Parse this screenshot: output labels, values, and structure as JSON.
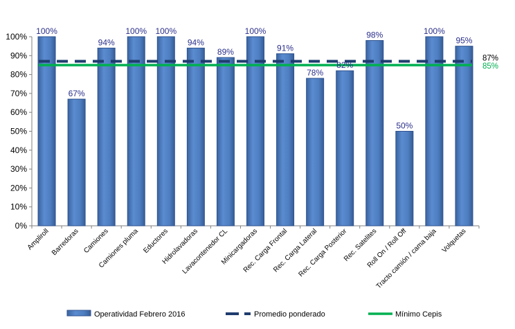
{
  "chart_data": {
    "type": "bar",
    "categories": [
      "Ampliroll",
      "Barredoras",
      "Camiones",
      "Camiones pluma",
      "Eductores",
      "Hidrolavadoras",
      "Lavacontenedor CL",
      "Minicargadoras",
      "Rec. Carga Frontal",
      "Rec. Carga Lateral",
      "Rec. Carga Posterior",
      "Rec. Satelites",
      "Roll On / Roll Off",
      "Tracto camión / cama baja",
      "Volquetas"
    ],
    "series": [
      {
        "name": "Operatividad Febrero 2016",
        "values": [
          100,
          67,
          94,
          100,
          100,
          94,
          89,
          100,
          91,
          78,
          82,
          98,
          50,
          100,
          95
        ],
        "labels": [
          "100%",
          "67%",
          "94%",
          "100%",
          "100%",
          "94%",
          "89%",
          "100%",
          "91%",
          "78%",
          "82%",
          "98%",
          "50%",
          "100%",
          "95%"
        ],
        "color": "#4f81bd"
      }
    ],
    "reference_lines": [
      {
        "name": "Promedio ponderado",
        "value": 87,
        "label": "87%",
        "style": "dashed",
        "color": "#1f3c6e",
        "label_color": "#000000"
      },
      {
        "name": "Mínimo Cepis",
        "value": 85,
        "label": "85%",
        "style": "solid",
        "color": "#00b050",
        "label_color": "#00b050"
      }
    ],
    "yticks": [
      "0%",
      "10%",
      "20%",
      "30%",
      "40%",
      "50%",
      "60%",
      "70%",
      "80%",
      "90%",
      "100%"
    ],
    "ylim": [
      0,
      100
    ],
    "ytick_step": 10,
    "grid": false,
    "legend": "bottom",
    "legend_entries": [
      "Operatividad Febrero 2016",
      "Promedio ponderado",
      "Mínimo Cepis"
    ]
  }
}
